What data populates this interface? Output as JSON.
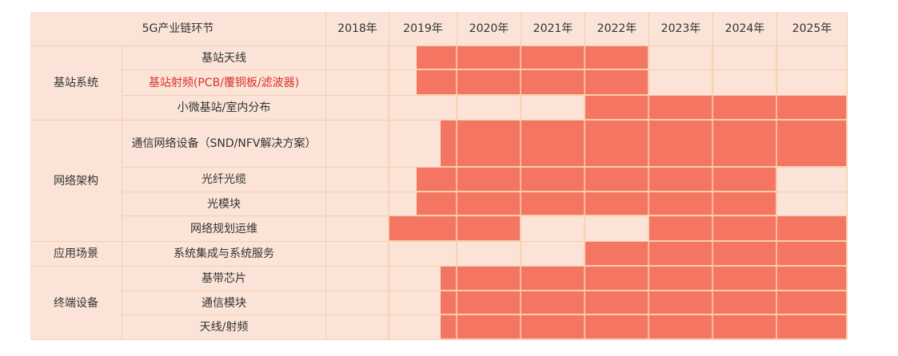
{
  "chart_data": {
    "type": "table",
    "header": {
      "corner": "5G产业链环节",
      "years": [
        "2018年",
        "2019年",
        "2020年",
        "2021年",
        "2022年",
        "2023年",
        "2024年",
        "2025年"
      ]
    },
    "year_range": [
      2018,
      2026
    ],
    "colors": {
      "active": "#f47561",
      "inactive": "#fbe4d7",
      "grid": "#f2cdb2",
      "highlight_text": "#d8332e"
    },
    "groups": [
      {
        "name": "基站系统",
        "rows": [
          {
            "label": "基站天线",
            "periods": [
              [
                2019.4,
                2023
              ]
            ]
          },
          {
            "label": "基站射频(PCB/覆铜板/滤波器)",
            "highlight": true,
            "periods": [
              [
                2019.4,
                2023
              ]
            ]
          },
          {
            "label": "小微基站/室内分布",
            "periods": [
              [
                2022,
                2026
              ]
            ]
          }
        ]
      },
      {
        "name": "网络架构",
        "rows": [
          {
            "label": "通信网络设备（SND/NFV解决方案）",
            "periods": [
              [
                2019.75,
                2026
              ]
            ]
          },
          {
            "label": "光纤光缆",
            "periods": [
              [
                2019.4,
                2025
              ]
            ]
          },
          {
            "label": "光模块",
            "periods": [
              [
                2019.4,
                2025
              ]
            ]
          },
          {
            "label": "网络规划运维",
            "periods": [
              [
                2019,
                2021
              ],
              [
                2023,
                2026
              ]
            ]
          }
        ]
      },
      {
        "name": "应用场景",
        "rows": [
          {
            "label": "系统集成与系统服务",
            "periods": [
              [
                2022,
                2026
              ]
            ]
          }
        ]
      },
      {
        "name": "终端设备",
        "rows": [
          {
            "label": "基带芯片",
            "periods": [
              [
                2019.75,
                2026
              ]
            ]
          },
          {
            "label": "通信模块",
            "periods": [
              [
                2019.75,
                2026
              ]
            ]
          },
          {
            "label": "天线/射频",
            "periods": [
              [
                2019.75,
                2026
              ]
            ]
          }
        ]
      }
    ]
  }
}
